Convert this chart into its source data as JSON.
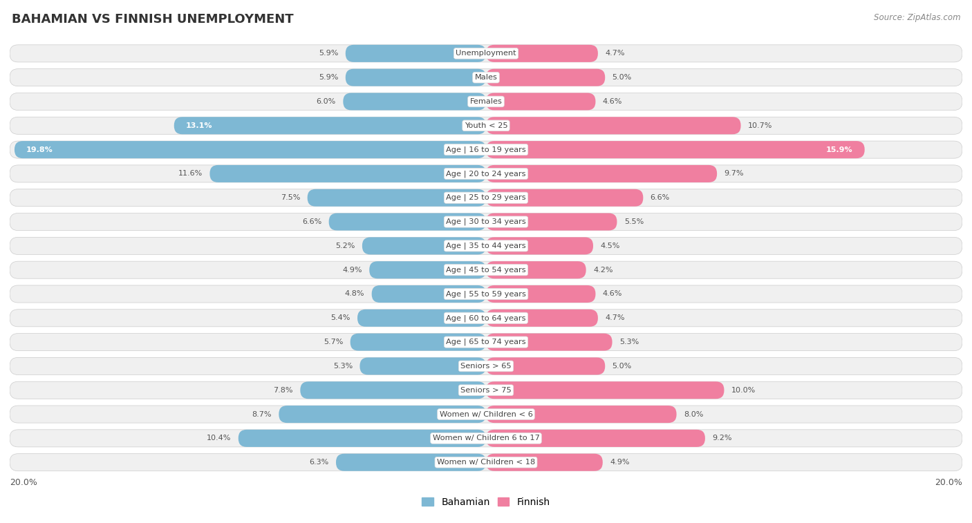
{
  "title": "BAHAMIAN VS FINNISH UNEMPLOYMENT",
  "source": "Source: ZipAtlas.com",
  "categories": [
    "Unemployment",
    "Males",
    "Females",
    "Youth < 25",
    "Age | 16 to 19 years",
    "Age | 20 to 24 years",
    "Age | 25 to 29 years",
    "Age | 30 to 34 years",
    "Age | 35 to 44 years",
    "Age | 45 to 54 years",
    "Age | 55 to 59 years",
    "Age | 60 to 64 years",
    "Age | 65 to 74 years",
    "Seniors > 65",
    "Seniors > 75",
    "Women w/ Children < 6",
    "Women w/ Children 6 to 17",
    "Women w/ Children < 18"
  ],
  "bahamian": [
    5.9,
    5.9,
    6.0,
    13.1,
    19.8,
    11.6,
    7.5,
    6.6,
    5.2,
    4.9,
    4.8,
    5.4,
    5.7,
    5.3,
    7.8,
    8.7,
    10.4,
    6.3
  ],
  "finnish": [
    4.7,
    5.0,
    4.6,
    10.7,
    15.9,
    9.7,
    6.6,
    5.5,
    4.5,
    4.2,
    4.6,
    4.7,
    5.3,
    5.0,
    10.0,
    8.0,
    9.2,
    4.9
  ],
  "bahamian_color": "#7eb8d4",
  "finnish_color": "#f07fa0",
  "bahamian_label_color": "#5a9bbe",
  "finnish_label_color": "#e8608a",
  "row_pill_color": "#f0f0f0",
  "bg_color": "#ffffff",
  "gap_color": "#d8d8d8",
  "max_val": 20.0,
  "legend_bahamian": "Bahamian",
  "legend_finnish": "Finnish",
  "value_label_inside_color": "#ffffff",
  "value_label_outside_color": "#666666"
}
